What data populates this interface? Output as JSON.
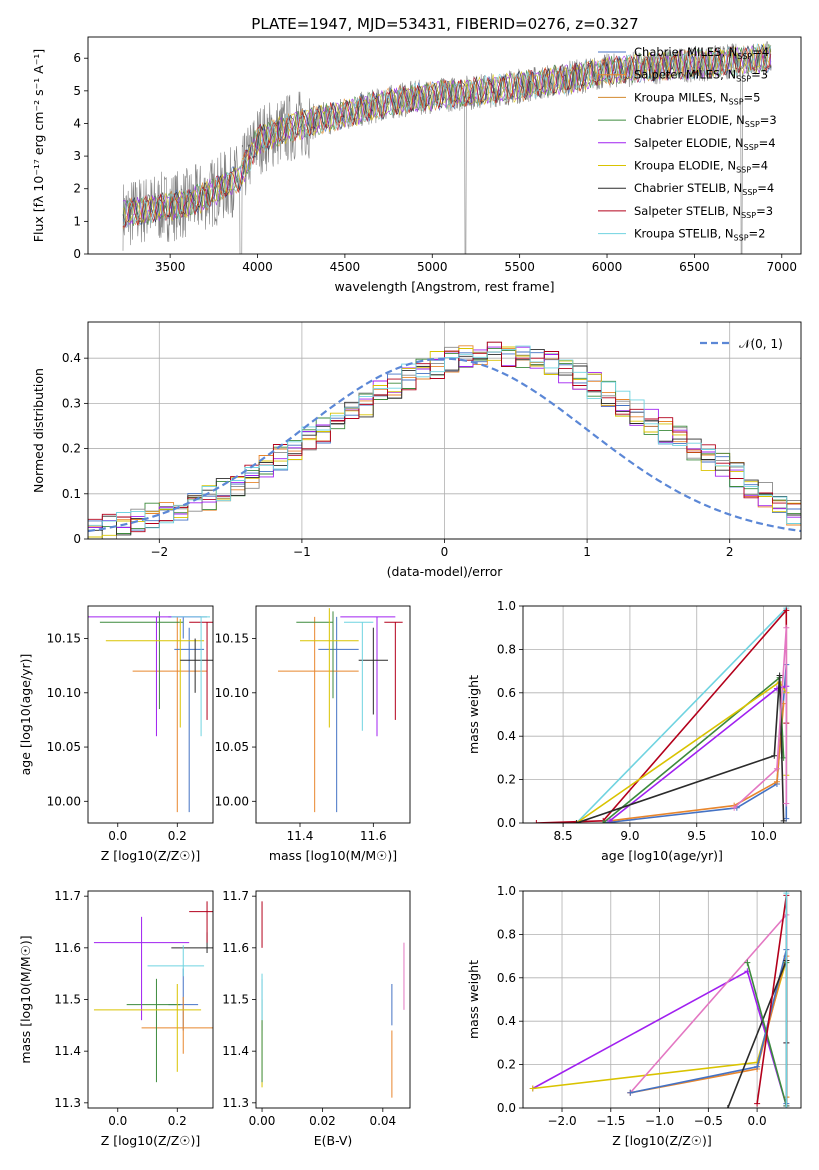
{
  "figure": {
    "title": "PLATE=1947, MJD=53431, FIBERID=0276, z=0.327"
  },
  "colors": [
    "#4472c4",
    "#e8862d",
    "#3c8a3c",
    "#8a8a8a",
    "#a020f0",
    "#d9c300",
    "#2b2b2b",
    "#b3001b",
    "#6fd3e0"
  ],
  "chart_data": [
    {
      "id": "spectrum",
      "type": "line",
      "xlabel": "wavelength [Angstrom, rest frame]",
      "ylabel": "Flux [fλ 10⁻¹⁷ erg cm⁻² s⁻¹ A⁻¹]",
      "xlim": [
        3030,
        7110
      ],
      "ylim": [
        0,
        6.65
      ],
      "xticks": [
        3500,
        4000,
        4500,
        5000,
        5500,
        6000,
        6500,
        7000
      ],
      "yticks": [
        0,
        1,
        2,
        3,
        4,
        5,
        6
      ],
      "grid": false,
      "legend_position": "top-right",
      "data_color": "#808080",
      "data_range": [
        3230,
        6940
      ],
      "continuum": [
        [
          3230,
          1.2
        ],
        [
          3350,
          1.35
        ],
        [
          3600,
          1.55
        ],
        [
          3750,
          1.9
        ],
        [
          3900,
          2.35
        ],
        [
          4000,
          3.5
        ],
        [
          4200,
          3.9
        ],
        [
          4500,
          4.3
        ],
        [
          4800,
          4.7
        ],
        [
          5000,
          4.85
        ],
        [
          5300,
          5.0
        ],
        [
          5500,
          5.15
        ],
        [
          5800,
          5.4
        ],
        [
          6000,
          5.6
        ],
        [
          6300,
          5.75
        ],
        [
          6600,
          5.85
        ],
        [
          6900,
          6.0
        ]
      ],
      "series": [
        {
          "name": "Chabrier MILES, N_SSP=4",
          "color": "#4472c4"
        },
        {
          "name": "Salpeter MILES, N_SSP=3",
          "color": "#e8862d"
        },
        {
          "name": "Kroupa MILES, N_SSP=5",
          "color": "#d2892f"
        },
        {
          "name": "Chabrier ELODIE, N_SSP=3",
          "color": "#3c8a3c"
        },
        {
          "name": "Salpeter ELODIE, N_SSP=4",
          "color": "#a020f0"
        },
        {
          "name": "Kroupa ELODIE, N_SSP=4",
          "color": "#d9c300"
        },
        {
          "name": "Chabrier STELIB, N_SSP=4",
          "color": "#2b2b2b"
        },
        {
          "name": "Salpeter STELIB, N_SSP=3",
          "color": "#b3001b"
        },
        {
          "name": "Kroupa STELIB, N_SSP=2",
          "color": "#6fd3e0"
        }
      ]
    },
    {
      "id": "residuals",
      "type": "line",
      "xlabel": "(data-model)/error",
      "ylabel": "Normed distribution",
      "xlim": [
        -2.5,
        2.5
      ],
      "ylim": [
        0,
        0.48
      ],
      "xticks": [
        -2,
        -1,
        0,
        1,
        2
      ],
      "yticks": [
        0.0,
        0.1,
        0.2,
        0.3,
        0.4
      ],
      "grid": true,
      "legend_position": "top-right",
      "legend_label": "𝒩(0, 1)",
      "gaussian_color": "#5b87d6",
      "bin_width": 0.1,
      "base_hist": [
        0.02,
        0.025,
        0.03,
        0.04,
        0.05,
        0.06,
        0.07,
        0.08,
        0.09,
        0.105,
        0.12,
        0.14,
        0.16,
        0.18,
        0.2,
        0.22,
        0.24,
        0.26,
        0.28,
        0.3,
        0.32,
        0.34,
        0.36,
        0.37,
        0.385,
        0.395,
        0.4,
        0.405,
        0.41,
        0.4,
        0.4,
        0.395,
        0.385,
        0.37,
        0.36,
        0.34,
        0.32,
        0.3,
        0.28,
        0.26,
        0.24,
        0.22,
        0.2,
        0.18,
        0.16,
        0.14,
        0.12,
        0.1,
        0.08,
        0.06
      ]
    },
    {
      "id": "Z_vs_age",
      "type": "scatter",
      "xlabel": "Z [log10(Z/Z☉)]",
      "ylabel": "age [log10(age/yr)]",
      "xlim": [
        -0.1,
        0.32
      ],
      "ylim": [
        9.98,
        10.18
      ],
      "xticks": [
        0.0,
        0.2
      ],
      "yticks": [
        10.0,
        10.05,
        10.1,
        10.15
      ],
      "tick_decimals": [
        1,
        2
      ],
      "points": [
        {
          "x": 0.22,
          "y": 10.17,
          "xerr": [
            0.05,
            0.08
          ],
          "yerr": [
            0.02,
            0.0
          ],
          "c": 0
        },
        {
          "x": 0.2,
          "y": 10.12,
          "xerr": [
            0.15,
            0.1
          ],
          "yerr": [
            0.13,
            0.05
          ],
          "c": 1
        },
        {
          "x": 0.24,
          "y": 10.14,
          "xerr": [
            0.05,
            0.05
          ],
          "yerr": [
            0.15,
            0.02
          ],
          "c": 0
        },
        {
          "x": 0.14,
          "y": 10.165,
          "xerr": [
            0.2,
            0.08
          ],
          "yerr": [
            0.08,
            0.01
          ],
          "c": 2
        },
        {
          "x": 0.13,
          "y": 10.17,
          "xerr": [
            0.3,
            0.15
          ],
          "yerr": [
            0.11,
            0.0
          ],
          "c": 4
        },
        {
          "x": 0.21,
          "y": 10.148,
          "xerr": [
            0.25,
            0.08
          ],
          "yerr": [
            0.08,
            0.02
          ],
          "c": 5
        },
        {
          "x": 0.26,
          "y": 10.13,
          "xerr": [
            0.05,
            0.06
          ],
          "yerr": [
            0.03,
            0.02
          ],
          "c": 6
        },
        {
          "x": 0.3,
          "y": 10.165,
          "xerr": [
            0.06,
            0.02
          ],
          "yerr": [
            0.09,
            0.0
          ],
          "c": 7
        },
        {
          "x": 0.28,
          "y": 10.17,
          "xerr": [
            0.1,
            0.03
          ],
          "yerr": [
            0.11,
            0.0
          ],
          "c": 8
        }
      ]
    },
    {
      "id": "mass_vs_age",
      "type": "scatter",
      "xlabel": "mass [log10(M/M☉)]",
      "ylabel": "",
      "xlim": [
        11.28,
        11.7
      ],
      "ylim": [
        9.98,
        10.18
      ],
      "xticks": [
        11.4,
        11.6
      ],
      "yticks": [
        10.0,
        10.05,
        10.1,
        10.15
      ],
      "tick_decimals": [
        1,
        2
      ],
      "points": [
        {
          "x": 11.5,
          "y": 10.14,
          "xerr": [
            0.05,
            0.06
          ],
          "yerr": [
            0.15,
            0.03
          ],
          "c": 0
        },
        {
          "x": 11.44,
          "y": 10.12,
          "xerr": [
            0.1,
            0.12
          ],
          "yerr": [
            0.13,
            0.05
          ],
          "c": 1
        },
        {
          "x": 11.49,
          "y": 10.165,
          "xerr": [
            0.1,
            0.0
          ],
          "yerr": [
            0.07,
            0.01
          ],
          "c": 2
        },
        {
          "x": 11.61,
          "y": 10.17,
          "xerr": [
            0.1,
            0.05
          ],
          "yerr": [
            0.11,
            0.0
          ],
          "c": 4
        },
        {
          "x": 11.48,
          "y": 10.148,
          "xerr": [
            0.08,
            0.08
          ],
          "yerr": [
            0.08,
            0.03
          ],
          "c": 5
        },
        {
          "x": 11.6,
          "y": 10.13,
          "xerr": [
            0.04,
            0.04
          ],
          "yerr": [
            0.05,
            0.03
          ],
          "c": 6
        },
        {
          "x": 11.66,
          "y": 10.165,
          "xerr": [
            0.03,
            0.02
          ],
          "yerr": [
            0.09,
            0.0
          ],
          "c": 7
        },
        {
          "x": 11.57,
          "y": 10.165,
          "xerr": [
            0.05,
            0.03
          ],
          "yerr": [
            0.1,
            0.0
          ],
          "c": 8
        }
      ]
    },
    {
      "id": "age_weights",
      "type": "line",
      "xlabel": "age [log10(age/yr)]",
      "ylabel": "mass weight",
      "xlim": [
        8.2,
        10.28
      ],
      "ylim": [
        0,
        1.0
      ],
      "xticks": [
        8.5,
        9.0,
        9.5,
        10.0
      ],
      "yticks": [
        0.0,
        0.2,
        0.4,
        0.6,
        0.8,
        1.0
      ],
      "tick_decimals": [
        1,
        1
      ],
      "grid": true,
      "series": [
        {
          "c": 8,
          "x": [
            8.6,
            10.17
          ],
          "y": [
            0.0,
            0.99
          ]
        },
        {
          "c": 7,
          "x": [
            8.3,
            8.8,
            10.17,
            10.17
          ],
          "y": [
            0.0,
            0.01,
            0.98,
            0.46
          ]
        },
        {
          "c": 0,
          "x": [
            8.8,
            9.8,
            10.1,
            10.17,
            10.17
          ],
          "y": [
            0.0,
            0.07,
            0.18,
            0.73,
            0.02
          ]
        },
        {
          "c": 1,
          "x": [
            8.85,
            9.78,
            10.1,
            10.15
          ],
          "y": [
            0.01,
            0.08,
            0.19,
            0.55
          ]
        },
        {
          "c": 2,
          "x": [
            8.8,
            10.12,
            10.15
          ],
          "y": [
            0.0,
            0.67,
            0.3
          ]
        },
        {
          "c": 5,
          "x": [
            8.6,
            10.12,
            10.17,
            10.17
          ],
          "y": [
            0.0,
            0.65,
            0.6,
            0.22
          ]
        },
        {
          "c": 4,
          "x": [
            8.85,
            10.1,
            10.17
          ],
          "y": [
            0.01,
            0.62,
            0.63
          ]
        },
        {
          "c": 6,
          "x": [
            8.6,
            10.08,
            10.12,
            10.15
          ],
          "y": [
            0.0,
            0.31,
            0.68,
            0.01
          ]
        },
        {
          "c": 9,
          "x": [
            9.78,
            10.1,
            10.17,
            10.17
          ],
          "y": [
            0.07,
            0.25,
            0.9,
            0.09
          ]
        }
      ]
    },
    {
      "id": "Z_vs_mass",
      "type": "scatter",
      "xlabel": "Z [log10(Z/Z☉)]",
      "ylabel": "mass [log10(M/M☉)]",
      "xlim": [
        -0.1,
        0.32
      ],
      "ylim": [
        11.29,
        11.71
      ],
      "xticks": [
        0.0,
        0.2
      ],
      "yticks": [
        11.3,
        11.4,
        11.5,
        11.6,
        11.7
      ],
      "tick_decimals": [
        1,
        1
      ],
      "points": [
        {
          "x": 0.22,
          "y": 11.49,
          "xerr": [
            0.05,
            0.05
          ],
          "yerr": [
            0.05,
            0.07
          ],
          "c": 0
        },
        {
          "x": 0.22,
          "y": 11.445,
          "xerr": [
            0.14,
            0.1
          ],
          "yerr": [
            0.05,
            0.06
          ],
          "c": 1
        },
        {
          "x": 0.13,
          "y": 11.49,
          "xerr": [
            0.1,
            0.08
          ],
          "yerr": [
            0.15,
            0.05
          ],
          "c": 2
        },
        {
          "x": 0.08,
          "y": 11.61,
          "xerr": [
            0.16,
            0.16
          ],
          "yerr": [
            0.15,
            0.05
          ],
          "c": 4
        },
        {
          "x": 0.2,
          "y": 11.48,
          "xerr": [
            0.28,
            0.08
          ],
          "yerr": [
            0.12,
            0.05
          ],
          "c": 5
        },
        {
          "x": 0.3,
          "y": 11.6,
          "xerr": [
            0.12,
            0.02
          ],
          "yerr": [
            0.01,
            0.03
          ],
          "c": 6
        },
        {
          "x": 0.3,
          "y": 11.67,
          "xerr": [
            0.06,
            0.02
          ],
          "yerr": [
            0.06,
            0.02
          ],
          "c": 7
        },
        {
          "x": 0.22,
          "y": 11.565,
          "xerr": [
            0.12,
            0.07
          ],
          "yerr": [
            0.02,
            0.04
          ],
          "c": 8
        }
      ]
    },
    {
      "id": "ebv_vs_mass",
      "type": "scatter",
      "xlabel": "E(B-V)",
      "ylabel": "",
      "xlim": [
        -0.002,
        0.049
      ],
      "ylim": [
        11.29,
        11.71
      ],
      "xticks": [
        0.0,
        0.02,
        0.04
      ],
      "yticks": [
        11.3,
        11.4,
        11.5,
        11.6,
        11.7
      ],
      "tick_decimals": [
        2,
        1
      ],
      "points": [
        {
          "x": 0.0,
          "y": 11.49,
          "xerr": [
            0,
            0
          ],
          "yerr": [
            0.05,
            0.05
          ],
          "c": 0
        },
        {
          "x": 0.0,
          "y": 11.38,
          "xerr": [
            0,
            0
          ],
          "yerr": [
            0.05,
            0.08
          ],
          "c": 5
        },
        {
          "x": 0.0,
          "y": 11.64,
          "xerr": [
            0,
            0
          ],
          "yerr": [
            0.04,
            0.05
          ],
          "c": 7
        },
        {
          "x": 0.0,
          "y": 11.4,
          "xerr": [
            0,
            0
          ],
          "yerr": [
            0.06,
            0.1
          ],
          "c": 2
        },
        {
          "x": 0.0,
          "y": 11.5,
          "xerr": [
            0,
            0
          ],
          "yerr": [
            0.04,
            0.05
          ],
          "c": 8
        },
        {
          "x": 0.043,
          "y": 11.36,
          "xerr": [
            0,
            0
          ],
          "yerr": [
            0.05,
            0.08
          ],
          "c": 1
        },
        {
          "x": 0.043,
          "y": 11.49,
          "xerr": [
            0,
            0
          ],
          "yerr": [
            0.04,
            0.04
          ],
          "c": 0
        },
        {
          "x": 0.047,
          "y": 11.55,
          "xerr": [
            0,
            0
          ],
          "yerr": [
            0.07,
            0.06
          ],
          "c": 9
        }
      ]
    },
    {
      "id": "Z_weights",
      "type": "line",
      "xlabel": "Z [log10(Z/Z☉)]",
      "ylabel": "mass weight",
      "xlim": [
        -2.4,
        0.45
      ],
      "ylim": [
        0,
        1.0
      ],
      "xticks": [
        -2.0,
        -1.5,
        -1.0,
        -0.5,
        0.0
      ],
      "yticks": [
        0.0,
        0.2,
        0.4,
        0.6,
        0.8,
        1.0
      ],
      "tick_decimals": [
        1,
        1
      ],
      "grid": true,
      "series": [
        {
          "c": 4,
          "x": [
            -2.3,
            -0.1,
            0.3
          ],
          "y": [
            0.09,
            0.63,
            0.01
          ]
        },
        {
          "c": 5,
          "x": [
            -2.3,
            0.0,
            0.3,
            0.3
          ],
          "y": [
            0.09,
            0.21,
            0.68,
            0.05
          ]
        },
        {
          "c": 9,
          "x": [
            -1.3,
            0.3,
            0.3
          ],
          "y": [
            0.07,
            0.89,
            0.3
          ]
        },
        {
          "c": 1,
          "x": [
            -1.3,
            0.0,
            0.3,
            0.3
          ],
          "y": [
            0.07,
            0.18,
            0.7,
            0.05
          ]
        },
        {
          "c": 0,
          "x": [
            -1.3,
            0.0,
            0.3,
            0.3
          ],
          "y": [
            0.07,
            0.19,
            0.73,
            0.02
          ]
        },
        {
          "c": 6,
          "x": [
            -0.3,
            0.3,
            0.3
          ],
          "y": [
            0.0,
            0.68,
            0.3
          ]
        },
        {
          "c": 2,
          "x": [
            -0.1,
            0.3,
            0.3
          ],
          "y": [
            0.67,
            0.01,
            0.67
          ]
        },
        {
          "c": 7,
          "x": [
            0.0,
            0.3,
            0.3
          ],
          "y": [
            0.02,
            0.98,
            0.0
          ]
        },
        {
          "c": 8,
          "x": [
            0.3,
            0.3
          ],
          "y": [
            0.0,
            0.99
          ]
        }
      ]
    }
  ]
}
